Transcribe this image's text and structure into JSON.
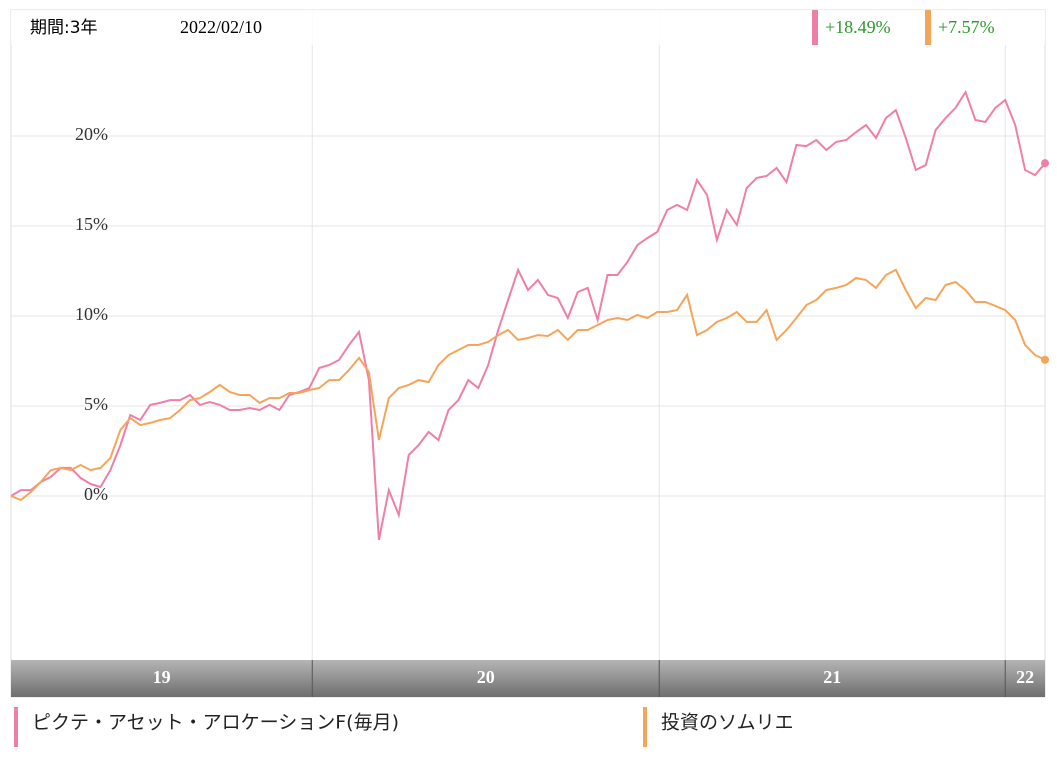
{
  "chart_data": {
    "type": "line",
    "period": "期間:3年",
    "date": "2022/02/10",
    "xlim": [
      0,
      104
    ],
    "xticks": [
      30.3,
      65.2,
      100
    ],
    "year_labels": [
      "19",
      "20",
      "21",
      "22"
    ],
    "ylim": [
      -9,
      27
    ],
    "yticks": [
      {
        "value": 0,
        "label": "0%"
      },
      {
        "value": 5,
        "label": "5%"
      },
      {
        "value": 10,
        "label": "10%"
      },
      {
        "value": 15,
        "label": "15%"
      },
      {
        "value": 20,
        "label": "20%"
      }
    ],
    "grid": true,
    "series": [
      {
        "name": "ピクテ・アセット・アロケーションF(毎月)",
        "color": "#f07fa8",
        "end_label": "+18.49%",
        "values": [
          0,
          0.33,
          0.33,
          0.78,
          1.06,
          1.56,
          1.56,
          1.0,
          0.67,
          0.5,
          1.44,
          2.83,
          4.5,
          4.22,
          5.06,
          5.17,
          5.33,
          5.33,
          5.61,
          5.06,
          5.22,
          5.06,
          4.78,
          4.78,
          4.89,
          4.78,
          5.06,
          4.78,
          5.61,
          5.78,
          6.0,
          7.11,
          7.28,
          7.56,
          8.39,
          9.11,
          6.44,
          -2.44,
          0.33,
          -1.06,
          2.28,
          2.83,
          3.56,
          3.11,
          4.78,
          5.33,
          6.44,
          6.0,
          7.28,
          9.22,
          10.89,
          12.56,
          11.44,
          12.0,
          11.17,
          11.0,
          9.89,
          11.33,
          11.56,
          9.78,
          12.28,
          12.28,
          13.0,
          13.94,
          14.33,
          14.67,
          15.89,
          16.17,
          15.89,
          17.56,
          16.72,
          14.22,
          15.89,
          15.06,
          17.11,
          17.67,
          17.78,
          18.22,
          17.44,
          19.5,
          19.44,
          19.78,
          19.22,
          19.67,
          19.78,
          20.22,
          20.61,
          19.89,
          21.0,
          21.44,
          19.89,
          18.11,
          18.39,
          20.33,
          21.0,
          21.56,
          22.44,
          20.89,
          20.78,
          21.56,
          22.0,
          20.61,
          18.11,
          17.83,
          18.49
        ]
      },
      {
        "name": "投資のソムリエ",
        "color": "#f5a55a",
        "end_label": "+7.57%",
        "values": [
          0,
          -0.22,
          0.22,
          0.78,
          1.44,
          1.56,
          1.44,
          1.72,
          1.44,
          1.56,
          2.11,
          3.67,
          4.33,
          3.94,
          4.06,
          4.22,
          4.33,
          4.78,
          5.33,
          5.44,
          5.78,
          6.17,
          5.78,
          5.61,
          5.61,
          5.17,
          5.44,
          5.44,
          5.72,
          5.72,
          5.89,
          6.0,
          6.44,
          6.44,
          7.0,
          7.67,
          6.89,
          3.11,
          5.44,
          6.0,
          6.17,
          6.44,
          6.33,
          7.28,
          7.83,
          8.11,
          8.39,
          8.39,
          8.56,
          8.94,
          9.22,
          8.67,
          8.78,
          8.94,
          8.89,
          9.22,
          8.67,
          9.22,
          9.22,
          9.5,
          9.78,
          9.89,
          9.78,
          10.06,
          9.89,
          10.22,
          10.22,
          10.33,
          11.17,
          8.94,
          9.22,
          9.67,
          9.89,
          10.22,
          9.67,
          9.67,
          10.33,
          8.67,
          9.22,
          9.89,
          10.61,
          10.89,
          11.44,
          11.56,
          11.72,
          12.11,
          12.0,
          11.56,
          12.28,
          12.56,
          11.44,
          10.44,
          11.0,
          10.89,
          11.72,
          11.89,
          11.44,
          10.78,
          10.78,
          10.56,
          10.33,
          9.78,
          8.39,
          7.83,
          7.57
        ]
      }
    ]
  }
}
